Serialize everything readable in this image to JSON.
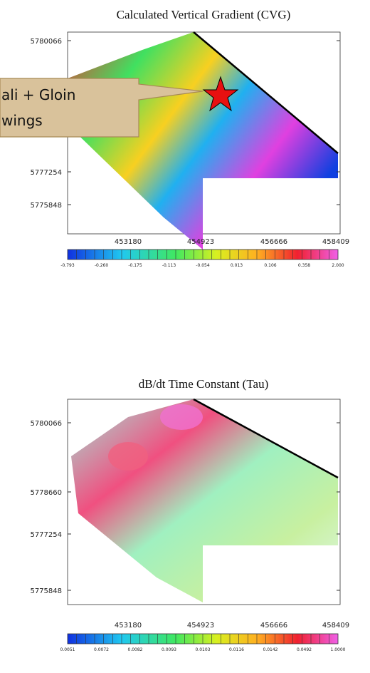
{
  "callout": {
    "lines": [
      "ali + Gloin",
      "wings"
    ]
  },
  "panels": [
    {
      "title": "Calculated Vertical Gradient (CVG)",
      "y_labels": [
        "5780066",
        "5777254",
        "5775848"
      ],
      "x_labels": [
        "453180",
        "454923",
        "456666",
        "458409"
      ],
      "colorbar_labels": [
        "-0.793",
        "-0.260",
        "-0.175",
        "-0.113",
        "-0.054",
        "0.013",
        "0.106",
        "0.358",
        "2.000"
      ]
    },
    {
      "title": "dB/dt Time Constant (Tau)",
      "y_labels": [
        "5780066",
        "5778660",
        "5777254",
        "5775848"
      ],
      "x_labels": [
        "453180",
        "454923",
        "456666",
        "458409"
      ],
      "colorbar_labels": [
        "0.0051",
        "0.0072",
        "0.0082",
        "0.0093",
        "0.0103",
        "0.0116",
        "0.0142",
        "0.0492",
        "1.0000"
      ]
    }
  ]
}
